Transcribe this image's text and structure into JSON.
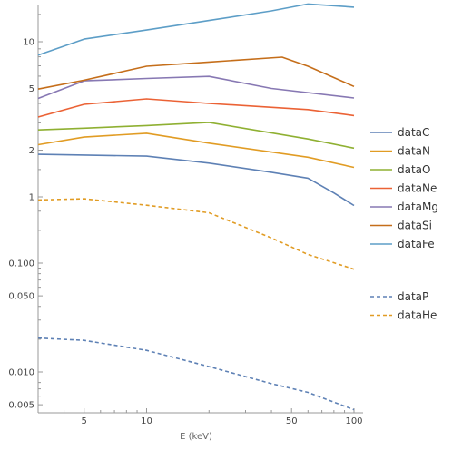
{
  "chart_data": {
    "type": "line",
    "xlabel": "E (keV)",
    "ylabel": "",
    "x_scale": "log",
    "y_scale": "log",
    "xlim": [
      3,
      100
    ],
    "ylim": [
      0.004,
      16
    ],
    "grid": false,
    "legend_position": "right",
    "x_ticks": [
      5,
      10,
      50,
      100
    ],
    "x_tick_labels": [
      "5",
      "10",
      "50",
      "100"
    ],
    "y_ticks": [
      0.005,
      0.01,
      0.05,
      0.1,
      1,
      2,
      5,
      10
    ],
    "y_tick_labels": [
      "0.005",
      "0.010",
      "0.050",
      "0.100",
      "1",
      "2",
      "5",
      "10"
    ],
    "y_axis_break": [
      0.4,
      0.85
    ],
    "series": [
      {
        "name": "dataC",
        "color": "#5e81b5",
        "dash": "solid",
        "x": [
          3,
          5,
          10,
          20,
          40,
          60,
          80,
          100
        ],
        "y": [
          1.88,
          1.86,
          1.83,
          1.65,
          1.44,
          1.32,
          1.06,
          0.88
        ]
      },
      {
        "name": "dataN",
        "color": "#e19c24",
        "dash": "solid",
        "x": [
          3,
          5,
          10,
          20,
          60,
          100
        ],
        "y": [
          2.17,
          2.43,
          2.57,
          2.22,
          1.8,
          1.55
        ]
      },
      {
        "name": "dataO",
        "color": "#8fb032",
        "dash": "solid",
        "x": [
          3,
          5,
          10,
          20,
          60,
          100
        ],
        "y": [
          2.7,
          2.77,
          2.88,
          3.02,
          2.36,
          2.06
        ]
      },
      {
        "name": "dataNe",
        "color": "#eb6235",
        "dash": "solid",
        "x": [
          3,
          5,
          10,
          20,
          60,
          100
        ],
        "y": [
          3.27,
          3.95,
          4.28,
          4.0,
          3.65,
          3.34
        ]
      },
      {
        "name": "dataMg",
        "color": "#8778b3",
        "dash": "solid",
        "x": [
          3,
          5,
          10,
          20,
          40,
          100
        ],
        "y": [
          4.31,
          5.6,
          5.8,
          5.98,
          5.0,
          4.34
        ]
      },
      {
        "name": "dataSi",
        "color": "#c56e1a",
        "dash": "solid",
        "x": [
          3,
          5,
          10,
          20,
          45,
          60,
          100
        ],
        "y": [
          4.95,
          5.65,
          6.95,
          7.4,
          7.95,
          6.95,
          5.15
        ]
      },
      {
        "name": "dataFe",
        "color": "#5d9ec7",
        "dash": "solid",
        "x": [
          3,
          5,
          10,
          20,
          40,
          60,
          100
        ],
        "y": [
          8.2,
          10.4,
          11.9,
          13.7,
          15.8,
          17.5,
          16.7
        ]
      },
      {
        "name": "dataP",
        "color": "#5e81b5",
        "dash": "dashed",
        "x": [
          3,
          5,
          10,
          20,
          40,
          60,
          100
        ],
        "y": [
          0.0205,
          0.0195,
          0.0158,
          0.0112,
          0.0078,
          0.0065,
          0.0045
        ]
      },
      {
        "name": "dataHe",
        "color": "#e19c24",
        "dash": "dashed",
        "x": [
          3,
          5,
          10,
          20,
          40,
          60,
          100
        ],
        "y": [
          0.38,
          0.39,
          0.34,
          0.29,
          0.17,
          0.12,
          0.088
        ]
      }
    ]
  }
}
